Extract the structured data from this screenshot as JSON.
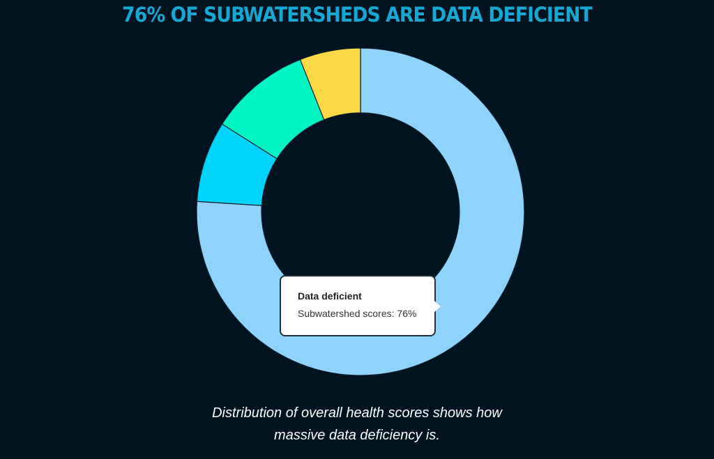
{
  "chart_data": {
    "type": "pie",
    "title": "76% OF SUBWATERSHEDS ARE DATA DEFICIENT",
    "caption_line1": "Distribution of overall health scores shows how",
    "caption_line2": "massive data deficiency is.",
    "slices": [
      {
        "name": "Data deficient",
        "value": 76,
        "color": "#8fd3fb"
      },
      {
        "name": "",
        "value": 8,
        "color": "#00d4fa"
      },
      {
        "name": "",
        "value": 10,
        "color": "#00f5c4"
      },
      {
        "name": "",
        "value": 6,
        "color": "#fcda45"
      }
    ],
    "tooltip": {
      "title": "Data deficient",
      "text": "Subwatershed scores: 76%"
    }
  }
}
